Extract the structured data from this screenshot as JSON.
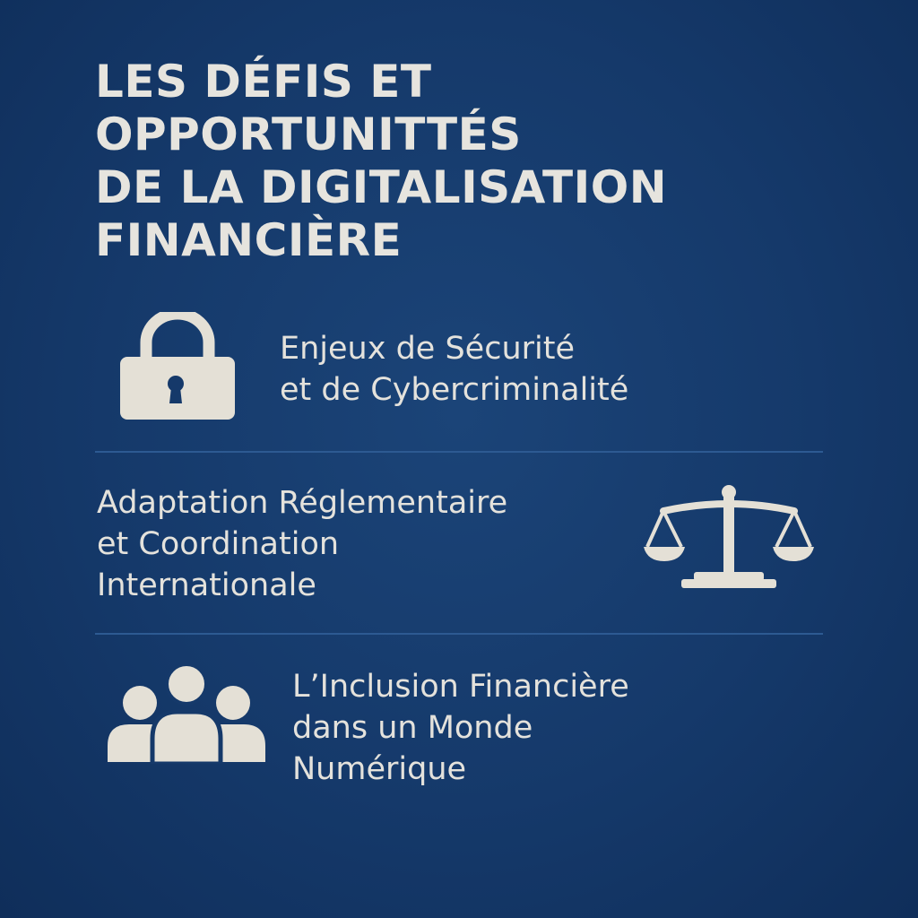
{
  "title": {
    "lines": [
      "LES DÉFIS ET",
      "OPPORTUNITTÉS",
      "DE LA DIGITALISATION",
      "FINANCIÈRE"
    ]
  },
  "sections": [
    {
      "icon": "lock-icon",
      "lines": [
        "Enjeux de Sécurité",
        "et de Cybercriminalité"
      ]
    },
    {
      "icon": "scales-icon",
      "lines": [
        "Adaptation Réglementaire",
        "et Coordination",
        "Internationale"
      ]
    },
    {
      "icon": "people-group-icon",
      "lines": [
        "L’Inclusion Financière",
        "dans un Monde",
        "Numérique"
      ]
    }
  ],
  "colors": {
    "background": "#15396a",
    "text": "#e6e4de",
    "icon": "#e4e0d6",
    "divider": "#2d5a92"
  }
}
